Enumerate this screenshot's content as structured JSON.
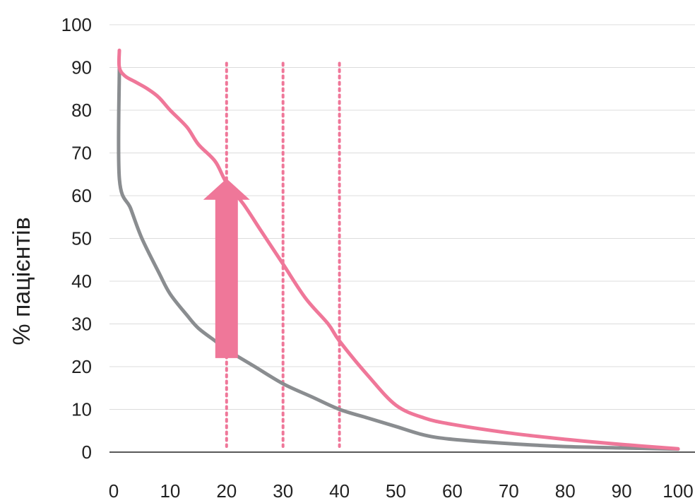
{
  "chart_data": {
    "type": "line",
    "title": "",
    "xlabel": "",
    "ylabel": "% пацієнтів",
    "xlim": [
      0,
      100
    ],
    "ylim": [
      0,
      100
    ],
    "x_ticks": [
      "0",
      "10",
      "20",
      "30",
      "40",
      "50",
      "60",
      "70",
      "80",
      "90",
      "100"
    ],
    "y_ticks": [
      "0",
      "10",
      "20",
      "30",
      "40",
      "50",
      "60",
      "70",
      "80",
      "90",
      "100"
    ],
    "grid": "horizontal",
    "legend": "none",
    "series": [
      {
        "color": "#8a8d90",
        "points": [
          [
            1,
            90
          ],
          [
            1,
            64
          ],
          [
            3,
            57
          ],
          [
            5,
            50
          ],
          [
            8,
            42
          ],
          [
            10,
            37
          ],
          [
            13,
            32
          ],
          [
            15,
            29
          ],
          [
            18,
            26
          ],
          [
            20,
            24
          ],
          [
            25,
            20
          ],
          [
            30,
            16
          ],
          [
            35,
            13
          ],
          [
            40,
            10
          ],
          [
            45,
            8
          ],
          [
            50,
            6
          ],
          [
            55,
            4
          ],
          [
            60,
            3
          ],
          [
            70,
            2
          ],
          [
            80,
            1.3
          ],
          [
            90,
            1
          ],
          [
            100,
            0.7
          ]
        ]
      },
      {
        "color": "#ef7799",
        "points": [
          [
            1,
            94
          ],
          [
            1,
            90
          ],
          [
            2,
            88
          ],
          [
            4,
            86.5
          ],
          [
            6,
            85
          ],
          [
            8,
            83
          ],
          [
            10,
            80
          ],
          [
            13,
            76
          ],
          [
            15,
            72
          ],
          [
            18,
            68
          ],
          [
            20,
            63
          ],
          [
            23,
            58
          ],
          [
            26,
            52
          ],
          [
            30,
            44
          ],
          [
            34,
            36
          ],
          [
            38,
            30
          ],
          [
            40,
            26
          ],
          [
            45,
            18
          ],
          [
            50,
            11
          ],
          [
            55,
            8
          ],
          [
            60,
            6.5
          ],
          [
            70,
            4.5
          ],
          [
            80,
            3
          ],
          [
            90,
            1.8
          ],
          [
            100,
            0.8
          ]
        ]
      }
    ],
    "vertical_markers": {
      "x": [
        20,
        30,
        40
      ],
      "y_top": 91,
      "style": "dotted",
      "color": "#ef7799"
    },
    "arrow": {
      "x": 20,
      "from_y": 22,
      "to_y": 64,
      "color": "#ef7799"
    }
  }
}
